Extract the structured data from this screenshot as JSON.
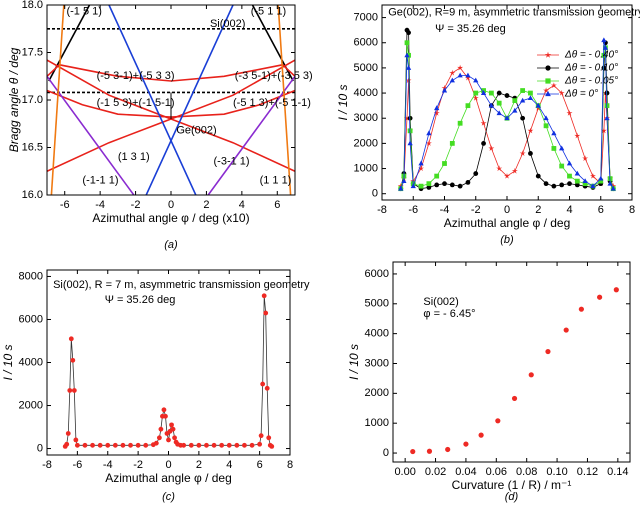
{
  "chart_data": [
    {
      "type": "line",
      "label": "(a)",
      "xlabel": "Azimuthal angle φ / deg (x10)",
      "ylabel": "Bragg angle θ / deg",
      "xlim": [
        -7,
        7
      ],
      "ylim": [
        16,
        18
      ],
      "xticks": [
        -6,
        -4,
        -2,
        0,
        2,
        4,
        6
      ],
      "yticks": [
        {
          "value": 16,
          "label": "16.0"
        },
        {
          "value": 16.5,
          "label": "16.5"
        },
        {
          "value": 17,
          "label": "17.0"
        },
        {
          "value": 17.5,
          "label": "17.5"
        },
        {
          "value": 18,
          "label": "18.0"
        }
      ],
      "series": [
        {
          "color": "#000000",
          "style": "dashed",
          "x": [
            -7,
            7
          ],
          "values": [
            17.75,
            17.75
          ]
        },
        {
          "color": "#000000",
          "style": "dashed",
          "x": [
            -7,
            7
          ],
          "values": [
            17.08,
            17.08
          ]
        },
        {
          "color": "#000000",
          "x": [
            -6.9,
            -4.6
          ],
          "values": [
            17.2,
            18
          ]
        },
        {
          "color": "#000000",
          "x": [
            4.6,
            6.9
          ],
          "values": [
            18,
            17.2
          ]
        },
        {
          "color": "#e8221b",
          "x": [
            -7,
            -3.5,
            0,
            3.5,
            7
          ],
          "values": [
            17.42,
            17.05,
            16.8,
            16.55,
            16.25
          ]
        },
        {
          "color": "#e8221b",
          "x": [
            -7,
            -3.5,
            0,
            3.5,
            7
          ],
          "values": [
            16.25,
            16.55,
            16.8,
            17.05,
            17.42
          ]
        },
        {
          "color": "#e8221b",
          "x": [
            -7,
            -6.3,
            -3,
            0,
            3,
            6.3,
            7
          ],
          "values": [
            17.25,
            17.37,
            17.25,
            17.2,
            17.25,
            17.37,
            17.25
          ]
        },
        {
          "color": "#e8221b",
          "x": [
            -7,
            -5,
            -3,
            0,
            3,
            5,
            7
          ],
          "values": [
            17.1,
            16.95,
            16.85,
            16.82,
            16.85,
            16.95,
            17.1
          ]
        },
        {
          "color": "#1a3fd6",
          "x": [
            -3.5,
            1.4
          ],
          "values": [
            18,
            16
          ]
        },
        {
          "color": "#1a3fd6",
          "x": [
            3.5,
            -1.4
          ],
          "values": [
            18,
            16
          ]
        },
        {
          "color": "#8a2bd0",
          "x": [
            -7,
            -2.1
          ],
          "values": [
            17.25,
            16
          ]
        },
        {
          "color": "#8a2bd0",
          "x": [
            7,
            2.1
          ],
          "values": [
            17.25,
            16
          ]
        },
        {
          "color": "#f07a12",
          "x": [
            -6.75,
            -6.4,
            -6.05
          ],
          "values": [
            16,
            17,
            18
          ]
        },
        {
          "color": "#f07a12",
          "x": [
            6.75,
            6.4,
            6.05
          ],
          "values": [
            16,
            17,
            18
          ]
        }
      ],
      "annotations": [
        "(-1 5 1)",
        "Si(002)",
        "(-5 1 1)",
        "(-5 3-1)+(-5 3 3)",
        "(-3 5-1)+(-3 5 3)",
        "(-1 5 3)+(-1 5-1)",
        "(-5 1 3)+(-5 1-1)",
        "Ge(002)",
        "(1 3 1)",
        "(-3-1 1)",
        "(-1-1 1)",
        "(1 1 1)"
      ]
    },
    {
      "type": "line",
      "label": "(b)",
      "xlabel": "Azimuthal angle φ / deg",
      "ylabel": "I / 10 s",
      "xlim": [
        -8,
        8
      ],
      "ylim": [
        -250,
        7500
      ],
      "xticks": [
        -8,
        -6,
        -4,
        -2,
        0,
        2,
        4,
        6,
        8
      ],
      "yticks": [
        0,
        1000,
        2000,
        3000,
        4000,
        5000,
        6000,
        7000
      ],
      "legend": "upper right",
      "x": [
        -6.8,
        -6.6,
        -6.4,
        -6.3,
        -6.2,
        -6,
        -5.5,
        -5,
        -4.5,
        -4,
        -3.5,
        -3,
        -2.5,
        -2,
        -1.5,
        -1,
        -0.5,
        0,
        0.5,
        1,
        1.5,
        2,
        2.5,
        3,
        3.5,
        4,
        4.5,
        5,
        5.5,
        6,
        6.2,
        6.3,
        6.4,
        6.6,
        6.8
      ],
      "series": [
        {
          "name": "Δθ = - 0.40°",
          "color": "#ee2a24",
          "marker": "star",
          "values": [
            300,
            600,
            3000,
            4500,
            2500,
            500,
            1000,
            2000,
            3200,
            4200,
            4800,
            5000,
            4600,
            3800,
            2800,
            1800,
            1000,
            700,
            900,
            1600,
            2500,
            3400,
            4100,
            4300,
            4000,
            3200,
            2300,
            1400,
            700,
            400,
            2500,
            4000,
            3000,
            600,
            300
          ]
        },
        {
          "name": "Δθ = - 0.10°",
          "color": "#000000",
          "marker": "circle",
          "values": [
            200,
            800,
            6500,
            6400,
            3000,
            400,
            200,
            250,
            350,
            400,
            350,
            300,
            450,
            800,
            2000,
            3500,
            4000,
            3900,
            3800,
            3000,
            1600,
            700,
            400,
            300,
            350,
            400,
            350,
            300,
            250,
            400,
            5000,
            6000,
            4000,
            500,
            200
          ]
        },
        {
          "name": "Δθ = - 0.05°",
          "color": "#44dd22",
          "marker": "square",
          "values": [
            200,
            700,
            6000,
            5500,
            2500,
            400,
            300,
            400,
            700,
            1200,
            2000,
            2800,
            3500,
            4000,
            4100,
            4000,
            3600,
            3000,
            3700,
            4100,
            4000,
            3500,
            2700,
            1800,
            1100,
            700,
            500,
            400,
            300,
            500,
            5500,
            5800,
            3500,
            600,
            200
          ]
        },
        {
          "name": "Δθ =   0°",
          "color": "#1030e0",
          "marker": "triangle",
          "values": [
            200,
            500,
            5500,
            5000,
            2000,
            300,
            1200,
            2400,
            3400,
            4100,
            4500,
            4700,
            4700,
            4500,
            4000,
            3500,
            3200,
            3000,
            3300,
            3700,
            3800,
            3500,
            3000,
            2400,
            1800,
            1200,
            800,
            500,
            300,
            600,
            6100,
            5800,
            3000,
            400,
            200
          ]
        }
      ],
      "annotations": [
        "Ge(002), R=9 m, asymmetric transmission geometry",
        "Ψ = 35.26 deg"
      ]
    },
    {
      "type": "line",
      "label": "(c)",
      "xlabel": "Azimuthal angle φ / deg",
      "ylabel": "I / 10 s",
      "xlim": [
        -8,
        8
      ],
      "ylim": [
        -300,
        8300
      ],
      "xticks": [
        -8,
        -6,
        -4,
        -2,
        0,
        2,
        4,
        6,
        8
      ],
      "yticks": [
        0,
        2000,
        4000,
        6000,
        8000
      ],
      "x": [
        -6.8,
        -6.7,
        -6.6,
        -6.5,
        -6.4,
        -6.3,
        -6.2,
        -6.1,
        -6,
        -5.5,
        -5,
        -4.5,
        -4,
        -3.5,
        -3,
        -2.5,
        -2,
        -1.5,
        -1,
        -0.8,
        -0.6,
        -0.5,
        -0.4,
        -0.3,
        -0.2,
        -0.1,
        0,
        0.1,
        0.2,
        0.3,
        0.4,
        0.5,
        0.6,
        0.8,
        1,
        1.5,
        2,
        2.5,
        3,
        3.5,
        4,
        4.5,
        5,
        5.5,
        6,
        6.1,
        6.2,
        6.3,
        6.4,
        6.5,
        6.6,
        6.7,
        6.8
      ],
      "series": [
        {
          "color": "#ee2a24",
          "line_color": "#333333",
          "marker": "circle",
          "values": [
            100,
            200,
            700,
            2700,
            5100,
            4100,
            2700,
            400,
            150,
            150,
            150,
            150,
            150,
            150,
            150,
            150,
            150,
            150,
            180,
            250,
            500,
            900,
            1500,
            1800,
            1500,
            700,
            400,
            800,
            1100,
            900,
            500,
            300,
            200,
            150,
            150,
            150,
            150,
            150,
            150,
            150,
            150,
            150,
            150,
            150,
            200,
            600,
            3000,
            7100,
            6300,
            2800,
            500,
            150,
            100
          ]
        }
      ],
      "annotations": [
        "Si(002), R = 7 m, asymmetric transmission geometry",
        "Ψ = 35.26 deg"
      ]
    },
    {
      "type": "scatter",
      "label": "(d)",
      "xlabel": "Curvature (1 / R)  / m⁻¹",
      "ylabel": "I / 10 s",
      "xlim": [
        -0.008,
        0.148
      ],
      "ylim": [
        -300,
        6400
      ],
      "xticks": [
        {
          "value": 0,
          "label": "0.00"
        },
        {
          "value": 0.02,
          "label": "0.02"
        },
        {
          "value": 0.04,
          "label": "0.04"
        },
        {
          "value": 0.06,
          "label": "0.06"
        },
        {
          "value": 0.08,
          "label": "0.08"
        },
        {
          "value": 0.1,
          "label": "0.10"
        },
        {
          "value": 0.12,
          "label": "0.12"
        },
        {
          "value": 0.14,
          "label": "0.14"
        }
      ],
      "yticks": [
        0,
        1000,
        2000,
        3000,
        4000,
        5000,
        6000
      ],
      "x": [
        0.005,
        0.016,
        0.028,
        0.04,
        0.05,
        0.061,
        0.072,
        0.083,
        0.094,
        0.106,
        0.116,
        0.128,
        0.139
      ],
      "series": [
        {
          "color": "#ee2a24",
          "marker": "circle",
          "values": [
            50,
            60,
            120,
            300,
            600,
            1080,
            1830,
            2620,
            3400,
            4120,
            4820,
            5220,
            5470
          ]
        }
      ],
      "annotations": [
        "Si(002)",
        "φ = - 6.45°"
      ]
    }
  ]
}
